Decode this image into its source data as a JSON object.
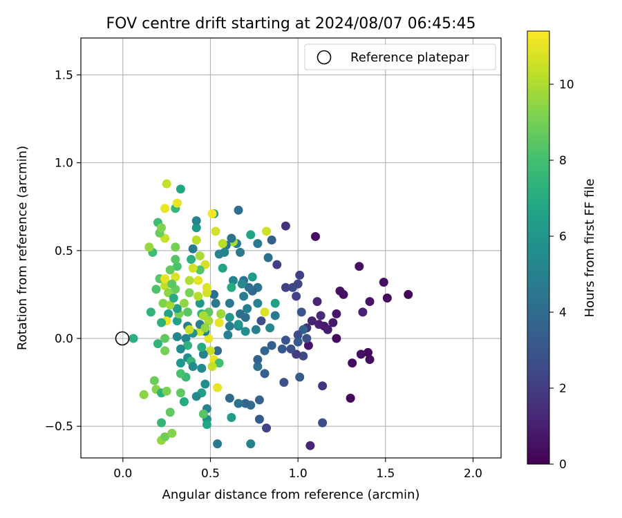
{
  "chart_data": {
    "type": "scatter",
    "title": "FOV centre drift starting at 2024/08/07 06:45:45",
    "xlabel": "Angular distance from reference (arcmin)",
    "ylabel": "Rotation from reference (arcmin)",
    "xlim": [
      -0.24,
      2.16
    ],
    "ylim": [
      -0.68,
      1.71
    ],
    "xticks": [
      0.0,
      0.5,
      1.0,
      1.5,
      2.0
    ],
    "xtick_labels": [
      "0.0",
      "0.5",
      "1.0",
      "1.5",
      "2.0"
    ],
    "yticks": [
      -0.5,
      0.0,
      0.5,
      1.0,
      1.5
    ],
    "ytick_labels": [
      "−0.5",
      "0.0",
      "0.5",
      "1.0",
      "1.5"
    ],
    "grid": true,
    "legend": {
      "position": "top-right",
      "entries": [
        "Reference platepar"
      ]
    },
    "reference_point": {
      "x": 0.0,
      "y": 0.0,
      "marker": "open-circle"
    },
    "colorbar": {
      "label": "Hours from first FF file",
      "colormap": "viridis",
      "range": [
        0,
        11.4
      ],
      "ticks": [
        0,
        2,
        4,
        6,
        8,
        10
      ],
      "tick_labels": [
        "0",
        "2",
        "4",
        "6",
        "8",
        "10"
      ]
    },
    "points": [
      {
        "x": 1.1,
        "y": 0.58,
        "c": 0.4
      },
      {
        "x": 0.93,
        "y": 0.64,
        "c": 1.6
      },
      {
        "x": 1.63,
        "y": 0.25,
        "c": 0.2
      },
      {
        "x": 1.51,
        "y": 0.23,
        "c": 0.3
      },
      {
        "x": 1.49,
        "y": 0.32,
        "c": 0.5
      },
      {
        "x": 1.41,
        "y": 0.21,
        "c": 0.6
      },
      {
        "x": 1.35,
        "y": 0.41,
        "c": 0.5
      },
      {
        "x": 1.37,
        "y": 0.15,
        "c": 1.0
      },
      {
        "x": 1.24,
        "y": 0.27,
        "c": 0.6
      },
      {
        "x": 1.26,
        "y": 0.25,
        "c": 0.5
      },
      {
        "x": 1.22,
        "y": 0.14,
        "c": 0.7
      },
      {
        "x": 1.2,
        "y": 0.09,
        "c": 0.8
      },
      {
        "x": 1.22,
        "y": 0.0,
        "c": 0.3
      },
      {
        "x": 1.4,
        "y": -0.08,
        "c": 0.3
      },
      {
        "x": 1.41,
        "y": -0.12,
        "c": 0.4
      },
      {
        "x": 1.36,
        "y": -0.09,
        "c": 0.5
      },
      {
        "x": 1.31,
        "y": -0.14,
        "c": 0.4
      },
      {
        "x": 1.3,
        "y": -0.34,
        "c": 0.2
      },
      {
        "x": 1.14,
        "y": -0.27,
        "c": 1.8
      },
      {
        "x": 1.14,
        "y": -0.48,
        "c": 2.6
      },
      {
        "x": 1.07,
        "y": -0.61,
        "c": 1.2
      },
      {
        "x": 1.06,
        "y": -0.04,
        "c": 0.6
      },
      {
        "x": 1.12,
        "y": 0.08,
        "c": 1.0
      },
      {
        "x": 1.15,
        "y": 0.07,
        "c": 0.8
      },
      {
        "x": 1.17,
        "y": 0.05,
        "c": 0.9
      },
      {
        "x": 1.13,
        "y": 0.13,
        "c": 1.4
      },
      {
        "x": 1.11,
        "y": 0.21,
        "c": 1.2
      },
      {
        "x": 1.08,
        "y": 0.1,
        "c": 1.1
      },
      {
        "x": 1.05,
        "y": 0.06,
        "c": 1.6
      },
      {
        "x": 1.02,
        "y": 0.15,
        "c": 3.0
      },
      {
        "x": 1.03,
        "y": 0.05,
        "c": 3.6
      },
      {
        "x": 1.0,
        "y": 0.02,
        "c": 2.6
      },
      {
        "x": 0.99,
        "y": 0.24,
        "c": 2.2
      },
      {
        "x": 1.0,
        "y": 0.31,
        "c": 2.4
      },
      {
        "x": 1.01,
        "y": 0.36,
        "c": 2.1
      },
      {
        "x": 0.97,
        "y": 0.29,
        "c": 2.5
      },
      {
        "x": 0.93,
        "y": 0.29,
        "c": 2.3
      },
      {
        "x": 0.88,
        "y": 0.42,
        "c": 2.1
      },
      {
        "x": 0.85,
        "y": 0.56,
        "c": 3.4
      },
      {
        "x": 0.83,
        "y": 0.46,
        "c": 4.2
      },
      {
        "x": 0.82,
        "y": 0.61,
        "c": 10.6
      },
      {
        "x": 1.0,
        "y": -0.02,
        "c": 3.2
      },
      {
        "x": 1.05,
        "y": 0.0,
        "c": 2.8
      },
      {
        "x": 1.03,
        "y": -0.1,
        "c": 2.5
      },
      {
        "x": 0.99,
        "y": -0.09,
        "c": 2.0
      },
      {
        "x": 1.01,
        "y": -0.22,
        "c": 3.3
      },
      {
        "x": 0.92,
        "y": -0.25,
        "c": 2.8
      },
      {
        "x": 0.96,
        "y": -0.06,
        "c": 2.7
      },
      {
        "x": 0.93,
        "y": -0.01,
        "c": 3.0
      },
      {
        "x": 0.91,
        "y": -0.06,
        "c": 3.2
      },
      {
        "x": 0.82,
        "y": -0.51,
        "c": 2.2
      },
      {
        "x": 0.78,
        "y": -0.46,
        "c": 3.2
      },
      {
        "x": 0.78,
        "y": -0.35,
        "c": 3.6
      },
      {
        "x": 0.73,
        "y": -0.38,
        "c": 4.0
      },
      {
        "x": 0.7,
        "y": -0.37,
        "c": 3.7
      },
      {
        "x": 0.66,
        "y": -0.37,
        "c": 4.3
      },
      {
        "x": 0.61,
        "y": -0.34,
        "c": 3.9
      },
      {
        "x": 0.73,
        "y": -0.6,
        "c": 5.1
      },
      {
        "x": 0.54,
        "y": -0.6,
        "c": 4.6
      },
      {
        "x": 0.62,
        "y": -0.45,
        "c": 6.3
      },
      {
        "x": 0.81,
        "y": -0.2,
        "c": 3.5
      },
      {
        "x": 0.77,
        "y": -0.16,
        "c": 4.3
      },
      {
        "x": 0.77,
        "y": -0.12,
        "c": 3.6
      },
      {
        "x": 0.81,
        "y": -0.07,
        "c": 3.8
      },
      {
        "x": 0.85,
        "y": -0.04,
        "c": 3.4
      },
      {
        "x": 0.84,
        "y": 0.06,
        "c": 5.3
      },
      {
        "x": 0.87,
        "y": 0.13,
        "c": 4.6
      },
      {
        "x": 0.87,
        "y": 0.2,
        "c": 6.4
      },
      {
        "x": 0.81,
        "y": 0.15,
        "c": 10.8
      },
      {
        "x": 0.79,
        "y": 0.1,
        "c": 2.6
      },
      {
        "x": 0.76,
        "y": 0.05,
        "c": 4.8
      },
      {
        "x": 0.77,
        "y": 0.2,
        "c": 5.0
      },
      {
        "x": 0.77,
        "y": 0.29,
        "c": 4.4
      },
      {
        "x": 0.74,
        "y": 0.27,
        "c": 3.8
      },
      {
        "x": 0.74,
        "y": 0.35,
        "c": 6.2
      },
      {
        "x": 0.73,
        "y": 0.59,
        "c": 6.6
      },
      {
        "x": 0.77,
        "y": 0.54,
        "c": 4.6
      },
      {
        "x": 0.72,
        "y": 0.29,
        "c": 4.2
      },
      {
        "x": 0.71,
        "y": 0.17,
        "c": 4.9
      },
      {
        "x": 0.7,
        "y": 0.12,
        "c": 4.2
      },
      {
        "x": 0.7,
        "y": 0.04,
        "c": 5.6
      },
      {
        "x": 0.69,
        "y": 0.24,
        "c": 4.7
      },
      {
        "x": 0.69,
        "y": 0.33,
        "c": 4.4
      },
      {
        "x": 0.68,
        "y": 0.31,
        "c": 5.3
      },
      {
        "x": 0.67,
        "y": 0.14,
        "c": 4.2
      },
      {
        "x": 0.66,
        "y": 0.07,
        "c": 4.9
      },
      {
        "x": 0.66,
        "y": 0.08,
        "c": 5.9
      },
      {
        "x": 0.67,
        "y": 0.49,
        "c": 4.6
      },
      {
        "x": 0.66,
        "y": 0.73,
        "c": 4.1
      },
      {
        "x": 0.65,
        "y": 0.54,
        "c": 4.6
      },
      {
        "x": 0.63,
        "y": 0.55,
        "c": 9.8
      },
      {
        "x": 0.62,
        "y": 0.57,
        "c": 4.4
      },
      {
        "x": 0.63,
        "y": 0.33,
        "c": 5.2
      },
      {
        "x": 0.62,
        "y": 0.29,
        "c": 7.0
      },
      {
        "x": 0.61,
        "y": 0.2,
        "c": 4.6
      },
      {
        "x": 0.61,
        "y": 0.12,
        "c": 6.1
      },
      {
        "x": 0.61,
        "y": 0.07,
        "c": 4.9
      },
      {
        "x": 0.6,
        "y": 0.02,
        "c": 5.0
      },
      {
        "x": 0.59,
        "y": 0.53,
        "c": 4.4
      },
      {
        "x": 0.58,
        "y": 0.49,
        "c": 5.2
      },
      {
        "x": 0.57,
        "y": 0.54,
        "c": 10.2
      },
      {
        "x": 0.57,
        "y": 0.4,
        "c": 6.6
      },
      {
        "x": 0.56,
        "y": 0.14,
        "c": 4.3
      },
      {
        "x": 0.56,
        "y": 0.14,
        "c": 9.7
      },
      {
        "x": 0.55,
        "y": 0.48,
        "c": 5.0
      },
      {
        "x": 0.55,
        "y": 0.09,
        "c": 11.0
      },
      {
        "x": 0.54,
        "y": -0.07,
        "c": 3.9
      },
      {
        "x": 0.53,
        "y": 0.2,
        "c": 4.6
      },
      {
        "x": 0.52,
        "y": 0.25,
        "c": 4.2
      },
      {
        "x": 0.52,
        "y": 0.71,
        "c": 6.2
      },
      {
        "x": 0.53,
        "y": 0.61,
        "c": 10.6
      },
      {
        "x": 0.51,
        "y": 0.71,
        "c": 11.2
      },
      {
        "x": 0.52,
        "y": -0.12,
        "c": 11.0
      },
      {
        "x": 0.55,
        "y": -0.14,
        "c": 8.0
      },
      {
        "x": 0.54,
        "y": -0.28,
        "c": 11.0
      },
      {
        "x": 0.51,
        "y": -0.16,
        "c": 10.4
      },
      {
        "x": 0.5,
        "y": -0.07,
        "c": 10.4
      },
      {
        "x": 0.49,
        "y": 0.1,
        "c": 9.9
      },
      {
        "x": 0.49,
        "y": 0.0,
        "c": 11.1
      },
      {
        "x": 0.49,
        "y": 0.15,
        "c": 8.6
      },
      {
        "x": 0.48,
        "y": 0.26,
        "c": 10.6
      },
      {
        "x": 0.48,
        "y": 0.29,
        "c": 10.8
      },
      {
        "x": 0.47,
        "y": 0.06,
        "c": 7.6
      },
      {
        "x": 0.47,
        "y": 0.04,
        "c": 5.1
      },
      {
        "x": 0.47,
        "y": 0.42,
        "c": 10.7
      },
      {
        "x": 0.47,
        "y": -0.26,
        "c": 5.5
      },
      {
        "x": 0.48,
        "y": -0.4,
        "c": 5.0
      },
      {
        "x": 0.48,
        "y": -0.46,
        "c": 5.6
      },
      {
        "x": 0.48,
        "y": -0.49,
        "c": 6.8
      },
      {
        "x": 0.46,
        "y": -0.43,
        "c": 8.4
      },
      {
        "x": 0.45,
        "y": -0.31,
        "c": 6.4
      },
      {
        "x": 0.42,
        "y": -0.33,
        "c": 5.3
      },
      {
        "x": 0.45,
        "y": -0.17,
        "c": 5.4
      },
      {
        "x": 0.46,
        "y": -0.09,
        "c": 5.0
      },
      {
        "x": 0.45,
        "y": -0.05,
        "c": 7.0
      },
      {
        "x": 0.44,
        "y": 0.04,
        "c": 10.6
      },
      {
        "x": 0.44,
        "y": 0.08,
        "c": 4.8
      },
      {
        "x": 0.45,
        "y": 0.14,
        "c": 7.4
      },
      {
        "x": 0.44,
        "y": 0.2,
        "c": 6.1
      },
      {
        "x": 0.43,
        "y": 0.24,
        "c": 10.1
      },
      {
        "x": 0.43,
        "y": 0.33,
        "c": 10.9
      },
      {
        "x": 0.44,
        "y": 0.39,
        "c": 8.3
      },
      {
        "x": 0.44,
        "y": 0.47,
        "c": 9.9
      },
      {
        "x": 0.42,
        "y": 0.56,
        "c": 10.2
      },
      {
        "x": 0.42,
        "y": 0.63,
        "c": 6.1
      },
      {
        "x": 0.42,
        "y": 0.67,
        "c": 5.1
      },
      {
        "x": 0.4,
        "y": 0.51,
        "c": 4.6
      },
      {
        "x": 0.39,
        "y": 0.45,
        "c": 7.2
      },
      {
        "x": 0.38,
        "y": 0.33,
        "c": 10.0
      },
      {
        "x": 0.38,
        "y": 0.26,
        "c": 9.1
      },
      {
        "x": 0.37,
        "y": 0.15,
        "c": 8.4
      },
      {
        "x": 0.37,
        "y": 0.07,
        "c": 4.8
      },
      {
        "x": 0.36,
        "y": 0.0,
        "c": 5.1
      },
      {
        "x": 0.37,
        "y": -0.04,
        "c": 7.4
      },
      {
        "x": 0.37,
        "y": -0.11,
        "c": 5.6
      },
      {
        "x": 0.39,
        "y": -0.13,
        "c": 7.6
      },
      {
        "x": 0.4,
        "y": -0.16,
        "c": 5.4
      },
      {
        "x": 0.36,
        "y": -0.22,
        "c": 7.7
      },
      {
        "x": 0.35,
        "y": -0.36,
        "c": 6.9
      },
      {
        "x": 0.33,
        "y": -0.31,
        "c": 8.6
      },
      {
        "x": 0.33,
        "y": -0.2,
        "c": 8.1
      },
      {
        "x": 0.33,
        "y": -0.14,
        "c": 6.0
      },
      {
        "x": 0.33,
        "y": -0.06,
        "c": 5.4
      },
      {
        "x": 0.31,
        "y": 0.01,
        "c": 5.2
      },
      {
        "x": 0.31,
        "y": 0.1,
        "c": 6.5
      },
      {
        "x": 0.32,
        "y": 0.14,
        "c": 9.1
      },
      {
        "x": 0.31,
        "y": 0.17,
        "c": 6.4
      },
      {
        "x": 0.3,
        "y": 0.28,
        "c": 8.8
      },
      {
        "x": 0.3,
        "y": 0.35,
        "c": 10.8
      },
      {
        "x": 0.31,
        "y": 0.41,
        "c": 8.1
      },
      {
        "x": 0.3,
        "y": 0.45,
        "c": 8.4
      },
      {
        "x": 0.3,
        "y": 0.52,
        "c": 9.0
      },
      {
        "x": 0.3,
        "y": 0.74,
        "c": 7.6
      },
      {
        "x": 0.31,
        "y": 0.77,
        "c": 11.0
      },
      {
        "x": 0.33,
        "y": 0.85,
        "c": 6.8
      },
      {
        "x": 0.25,
        "y": 0.88,
        "c": 10.4
      },
      {
        "x": 0.24,
        "y": 0.74,
        "c": 11.1
      },
      {
        "x": 0.24,
        "y": 0.57,
        "c": 10.4
      },
      {
        "x": 0.21,
        "y": 0.6,
        "c": 8.8
      },
      {
        "x": 0.2,
        "y": 0.66,
        "c": 7.9
      },
      {
        "x": 0.22,
        "y": 0.63,
        "c": 9.2
      },
      {
        "x": 0.17,
        "y": 0.49,
        "c": 7.9
      },
      {
        "x": 0.15,
        "y": 0.52,
        "c": 9.6
      },
      {
        "x": 0.16,
        "y": 0.15,
        "c": 7.4
      },
      {
        "x": 0.19,
        "y": 0.28,
        "c": 8.2
      },
      {
        "x": 0.21,
        "y": 0.34,
        "c": 8.4
      },
      {
        "x": 0.23,
        "y": 0.2,
        "c": 9.2
      },
      {
        "x": 0.24,
        "y": 0.3,
        "c": 10.3
      },
      {
        "x": 0.24,
        "y": 0.34,
        "c": 11.0
      },
      {
        "x": 0.26,
        "y": 0.26,
        "c": 9.4
      },
      {
        "x": 0.27,
        "y": 0.19,
        "c": 9.8
      },
      {
        "x": 0.27,
        "y": 0.39,
        "c": 8.7
      },
      {
        "x": 0.28,
        "y": 0.31,
        "c": 8.5
      },
      {
        "x": 0.29,
        "y": 0.23,
        "c": 7.1
      },
      {
        "x": 0.26,
        "y": 0.14,
        "c": 6.6
      },
      {
        "x": 0.25,
        "y": 0.1,
        "c": 11.0
      },
      {
        "x": 0.22,
        "y": 0.09,
        "c": 7.3
      },
      {
        "x": 0.24,
        "y": 0.0,
        "c": 8.6
      },
      {
        "x": 0.24,
        "y": -0.07,
        "c": 9.0
      },
      {
        "x": 0.2,
        "y": -0.03,
        "c": 7.4
      },
      {
        "x": 0.18,
        "y": -0.24,
        "c": 8.8
      },
      {
        "x": 0.19,
        "y": -0.29,
        "c": 9.3
      },
      {
        "x": 0.22,
        "y": -0.31,
        "c": 7.3
      },
      {
        "x": 0.25,
        "y": -0.3,
        "c": 9.1
      },
      {
        "x": 0.27,
        "y": -0.42,
        "c": 8.6
      },
      {
        "x": 0.22,
        "y": -0.48,
        "c": 7.5
      },
      {
        "x": 0.22,
        "y": -0.58,
        "c": 9.6
      },
      {
        "x": 0.24,
        "y": -0.56,
        "c": 8.9
      },
      {
        "x": 0.28,
        "y": -0.54,
        "c": 9.3
      },
      {
        "x": 0.12,
        "y": -0.32,
        "c": 9.4
      },
      {
        "x": 0.06,
        "y": 0.0,
        "c": 7.2
      },
      {
        "x": 0.47,
        "y": 0.06,
        "c": 9.5
      },
      {
        "x": 0.46,
        "y": 0.13,
        "c": 9.9
      },
      {
        "x": 0.4,
        "y": 0.03,
        "c": 5.8
      },
      {
        "x": 0.38,
        "y": 0.05,
        "c": 10.4
      },
      {
        "x": 0.35,
        "y": 0.2,
        "c": 9.5
      },
      {
        "x": 0.4,
        "y": 0.4,
        "c": 10.6
      }
    ]
  }
}
